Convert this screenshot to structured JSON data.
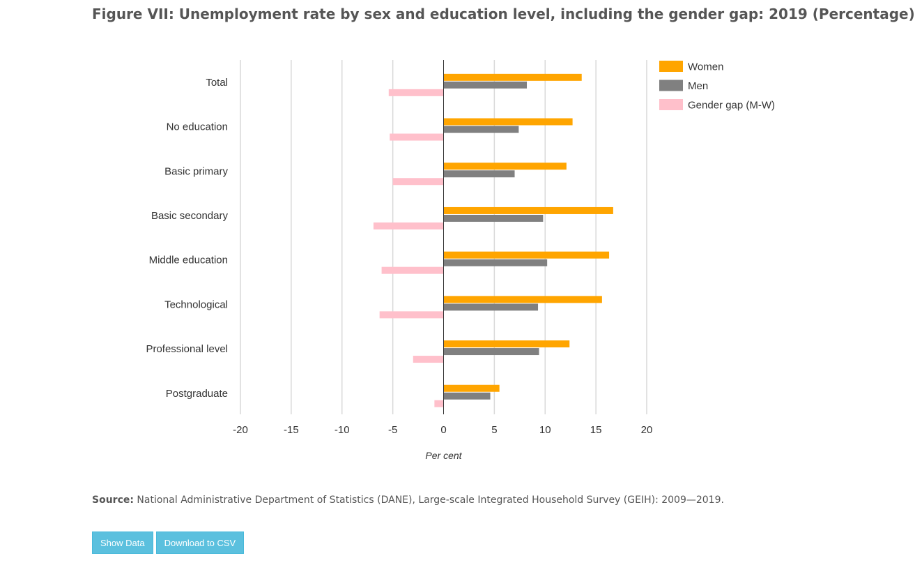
{
  "title": {
    "prefix": "Figure VII:",
    "text": "Unemployment rate by sex and education level, including the gender gap: 2019 (Percentage)"
  },
  "source": {
    "label": "Source:",
    "text": "National Administrative Department of Statistics (DANE), Large-scale Integrated Household Survey (GEIH): 2009—2019."
  },
  "buttons": {
    "show_data": "Show Data",
    "download_csv": "Download to CSV"
  },
  "chart_data": {
    "type": "bar",
    "orientation": "horizontal",
    "categories": [
      "Total",
      "No education",
      "Basic primary",
      "Basic secondary",
      "Middle education",
      "Technological",
      "Professional level",
      "Postgraduate"
    ],
    "series": [
      {
        "name": "Women",
        "color": "#ffa500",
        "values": [
          13.6,
          12.7,
          12.1,
          16.7,
          16.3,
          15.6,
          12.4,
          5.5
        ]
      },
      {
        "name": "Men",
        "color": "#808080",
        "values": [
          8.2,
          7.4,
          7.0,
          9.8,
          10.2,
          9.3,
          9.4,
          4.6
        ]
      },
      {
        "name": "Gender gap (M-W)",
        "color": "#ffc0cb",
        "values": [
          -5.4,
          -5.3,
          -5.0,
          -6.9,
          -6.1,
          -6.3,
          -3.0,
          -0.9
        ]
      }
    ],
    "xlabel": "Per cent",
    "ylabel": "",
    "xlim": [
      -20,
      20
    ],
    "xticks": [
      -20,
      -15,
      -10,
      -5,
      0,
      5,
      10,
      15,
      20
    ],
    "grid": true,
    "legend_position": "top-right"
  }
}
